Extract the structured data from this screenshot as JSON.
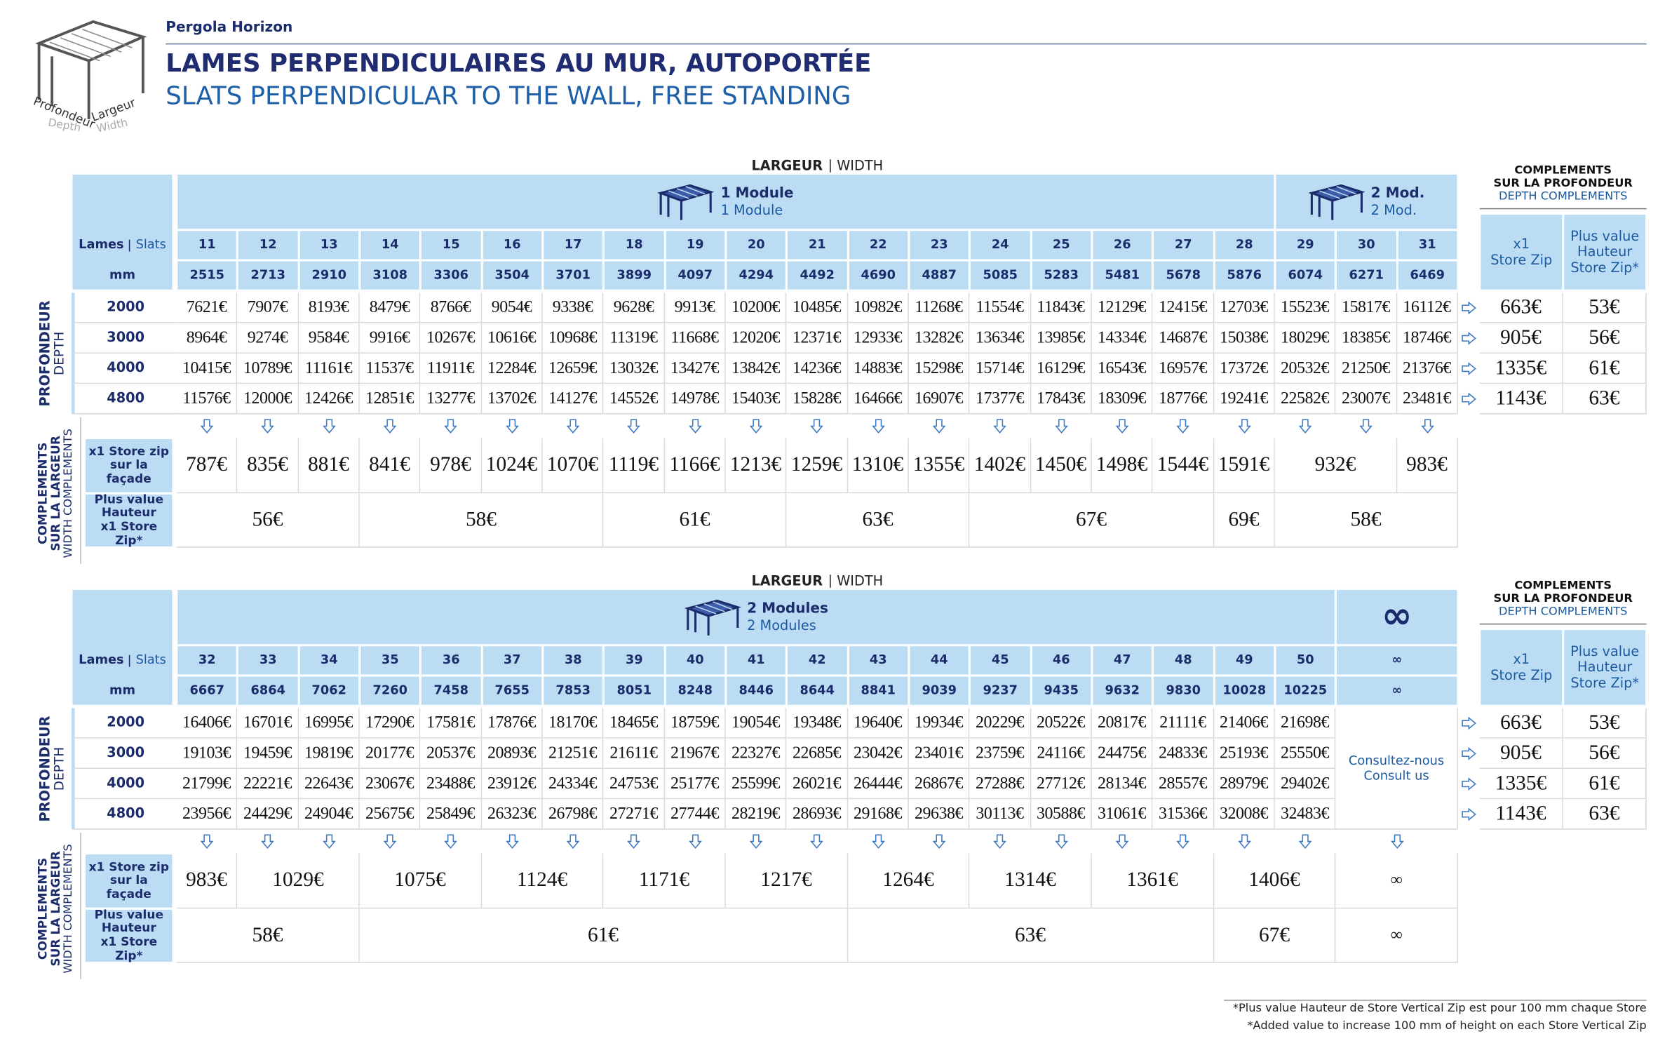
{
  "header": {
    "brand": "Pergola Horizon",
    "title": "LAMES PERPENDICULAIRES AU MUR, AUTOPORTÉE",
    "subtitle": "SLATS PERPENDICULAR TO THE WALL, FREE STANDING",
    "icon_labels": {
      "depth_fr": "Profondeur",
      "width_fr": "Largeur",
      "depth_en": "Depth",
      "width_en": "Width"
    }
  },
  "tables": [
    {
      "width_label_fr": "LARGEUR",
      "width_label_en": "WIDTH",
      "row_header": {
        "slats_fr": "Lames",
        "slats_en": "Slats",
        "mm": "mm"
      },
      "modules": [
        {
          "name": "1 Module",
          "name_en": "1 Module"
        },
        null,
        null,
        null,
        null,
        null,
        null,
        null,
        null,
        null,
        null,
        null,
        null,
        null,
        null,
        null,
        null,
        null,
        {
          "name": "2 Mod.",
          "name_en": "2 Mod."
        },
        null,
        null
      ],
      "slats": [
        "11",
        "12",
        "13",
        "14",
        "15",
        "16",
        "17",
        "18",
        "19",
        "20",
        "21",
        "22",
        "23",
        "24",
        "25",
        "26",
        "27",
        "28",
        "29",
        "30",
        "31"
      ],
      "mm": [
        "2515",
        "2713",
        "2910",
        "3108",
        "3306",
        "3504",
        "3701",
        "3899",
        "4097",
        "4294",
        "4492",
        "4690",
        "4887",
        "5085",
        "5283",
        "5481",
        "5678",
        "5876",
        "6074",
        "6271",
        "6469"
      ],
      "depth_label_fr": "PROFONDEUR",
      "depth_label_en": "DEPTH",
      "rows": [
        {
          "depth": "2000",
          "prices": [
            "7621€",
            "7907€",
            "8193€",
            "8479€",
            "8766€",
            "9054€",
            "9338€",
            "9628€",
            "9913€",
            "10200€",
            "10485€",
            "10982€",
            "11268€",
            "11554€",
            "11843€",
            "12129€",
            "12415€",
            "12703€",
            "15523€",
            "15817€",
            "16112€"
          ],
          "zip": "663€",
          "plus": "53€"
        },
        {
          "depth": "3000",
          "prices": [
            "8964€",
            "9274€",
            "9584€",
            "9916€",
            "10267€",
            "10616€",
            "10968€",
            "11319€",
            "11668€",
            "12020€",
            "12371€",
            "12933€",
            "13282€",
            "13634€",
            "13985€",
            "14334€",
            "14687€",
            "15038€",
            "18029€",
            "18385€",
            "18746€"
          ],
          "zip": "905€",
          "plus": "56€"
        },
        {
          "depth": "4000",
          "prices": [
            "10415€",
            "10789€",
            "11161€",
            "11537€",
            "11911€",
            "12284€",
            "12659€",
            "13032€",
            "13427€",
            "13842€",
            "14236€",
            "14883€",
            "15298€",
            "15714€",
            "16129€",
            "16543€",
            "16957€",
            "17372€",
            "20532€",
            "21250€",
            "21376€"
          ],
          "zip": "1335€",
          "plus": "61€"
        },
        {
          "depth": "4800",
          "prices": [
            "11576€",
            "12000€",
            "12426€",
            "12851€",
            "13277€",
            "13702€",
            "14127€",
            "14552€",
            "14978€",
            "15403€",
            "15828€",
            "16466€",
            "16907€",
            "17377€",
            "17843€",
            "18309€",
            "18776€",
            "19241€",
            "22582€",
            "23007€",
            "23481€"
          ],
          "zip": "1143€",
          "plus": "63€"
        }
      ],
      "width_complements": {
        "label_fr": [
          "COMPLEMENTS",
          "SUR LA LARGEUR"
        ],
        "label_en": "WIDTH COMPLEMENTS",
        "zip_label": [
          "x1 Store zip",
          "sur la façade"
        ],
        "plus_label": [
          "Plus value",
          "Hauteur",
          "x1 Store Zip*"
        ],
        "zip": [
          "787€",
          "835€",
          "881€",
          "841€",
          "978€",
          "1024€",
          "1070€",
          "1119€",
          "1166€",
          "1213€",
          "1259€",
          "1310€",
          "1355€",
          "1402€",
          "1450€",
          "1498€",
          "1544€",
          "1591€",
          "932€",
          null,
          "983€"
        ],
        "plus": [
          "56€",
          null,
          null,
          "58€",
          null,
          null,
          null,
          "61€",
          null,
          null,
          "63€",
          null,
          null,
          "67€",
          null,
          null,
          null,
          "69€",
          "58€",
          null,
          null
        ]
      },
      "depth_complements": {
        "title": [
          "COMPLEMENTS",
          "SUR LA PROFONDEUR"
        ],
        "title_en": "DEPTH COMPLEMENTS",
        "zip_header": [
          "x1",
          "Store Zip"
        ],
        "plus_header": [
          "Plus value",
          "Hauteur",
          "Store Zip*"
        ]
      }
    },
    {
      "width_label_fr": "LARGEUR",
      "width_label_en": "WIDTH",
      "row_header": {
        "slats_fr": "Lames",
        "slats_en": "Slats",
        "mm": "mm"
      },
      "modules": [
        {
          "name": "2 Modules",
          "name_en": "2 Modules"
        },
        null,
        null,
        null,
        null,
        null,
        null,
        null,
        null,
        null,
        null,
        null,
        null,
        null,
        null,
        null,
        null,
        null,
        null
      ],
      "slats": [
        "32",
        "33",
        "34",
        "35",
        "36",
        "37",
        "38",
        "39",
        "40",
        "41",
        "42",
        "43",
        "44",
        "45",
        "46",
        "47",
        "48",
        "49",
        "50"
      ],
      "mm": [
        "6667",
        "6864",
        "7062",
        "7260",
        "7458",
        "7655",
        "7853",
        "8051",
        "8248",
        "8446",
        "8644",
        "8841",
        "9039",
        "9237",
        "9435",
        "9632",
        "9830",
        "10028",
        "10225"
      ],
      "depth_label_fr": "PROFONDEUR",
      "depth_label_en": "DEPTH",
      "rows": [
        {
          "depth": "2000",
          "prices": [
            "16406€",
            "16701€",
            "16995€",
            "17290€",
            "17581€",
            "17876€",
            "18170€",
            "18465€",
            "18759€",
            "19054€",
            "19348€",
            "19640€",
            "19934€",
            "20229€",
            "20522€",
            "20817€",
            "21111€",
            "21406€",
            "21698€"
          ],
          "zip": "663€",
          "plus": "53€"
        },
        {
          "depth": "3000",
          "prices": [
            "19103€",
            "19459€",
            "19819€",
            "20177€",
            "20537€",
            "20893€",
            "21251€",
            "21611€",
            "21967€",
            "22327€",
            "22685€",
            "23042€",
            "23401€",
            "23759€",
            "24116€",
            "24475€",
            "24833€",
            "25193€",
            "25550€"
          ],
          "zip": "905€",
          "plus": "56€"
        },
        {
          "depth": "4000",
          "prices": [
            "21799€",
            "22221€",
            "22643€",
            "23067€",
            "23488€",
            "23912€",
            "24334€",
            "24753€",
            "25177€",
            "25599€",
            "26021€",
            "26444€",
            "26867€",
            "27288€",
            "27712€",
            "28134€",
            "28557€",
            "28979€",
            "29402€"
          ],
          "zip": "1335€",
          "plus": "61€"
        },
        {
          "depth": "4800",
          "prices": [
            "23956€",
            "24429€",
            "24904€",
            "25675€",
            "25849€",
            "26323€",
            "26798€",
            "27271€",
            "27744€",
            "28219€",
            "28693€",
            "29168€",
            "29638€",
            "30113€",
            "30588€",
            "31061€",
            "31536€",
            "32008€",
            "32483€"
          ],
          "zip": "1143€",
          "plus": "63€"
        }
      ],
      "extra": {
        "header": "∞",
        "slats": "∞",
        "mm": "∞",
        "consult": [
          "Consultez-nous",
          "Consult us"
        ],
        "zip": "∞",
        "plus": "∞"
      },
      "width_complements": {
        "label_fr": [
          "COMPLEMENTS",
          "SUR LA LARGEUR"
        ],
        "label_en": "WIDTH COMPLEMENTS",
        "zip_label": [
          "x1 Store zip",
          "sur la façade"
        ],
        "plus_label": [
          "Plus value",
          "Hauteur",
          "x1 Store Zip*"
        ],
        "zip": [
          "983€",
          "1029€",
          null,
          "1075€",
          null,
          "1124€",
          null,
          "1171€",
          null,
          "1217€",
          null,
          "1264€",
          null,
          "1314€",
          null,
          "1361€",
          null,
          "1406€",
          null
        ],
        "plus": [
          "58€",
          null,
          null,
          "61€",
          null,
          null,
          null,
          null,
          null,
          null,
          null,
          "63€",
          null,
          null,
          null,
          null,
          null,
          "67€",
          null
        ]
      },
      "depth_complements": {
        "title": [
          "COMPLEMENTS",
          "SUR LA PROFONDEUR"
        ],
        "title_en": "DEPTH COMPLEMENTS",
        "zip_header": [
          "x1",
          "Store Zip"
        ],
        "plus_header": [
          "Plus value",
          "Hauteur",
          "Store Zip*"
        ]
      }
    }
  ],
  "footnotes": [
    "*Plus value Hauteur de Store Vertical Zip est pour 100 mm chaque Store",
    "*Added value to increase 100 mm of height on each Store Vertical Zip"
  ]
}
